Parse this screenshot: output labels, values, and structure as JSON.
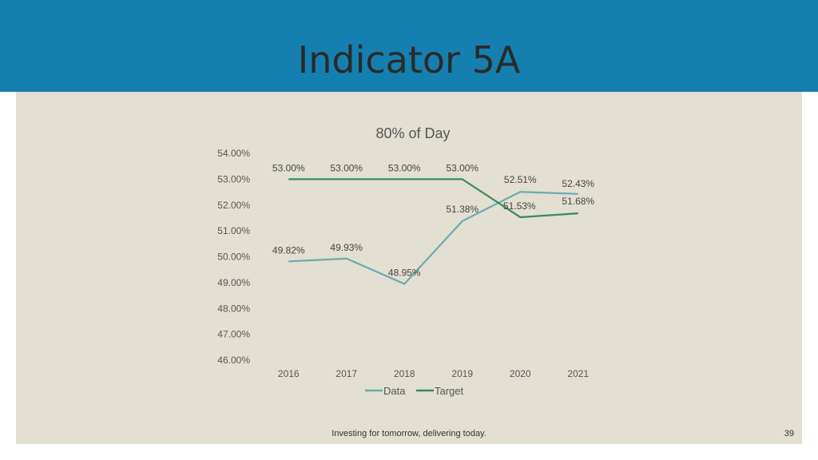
{
  "slide": {
    "title": "Indicator 5A",
    "footer": "Investing for tomorrow, delivering today.",
    "page_number": "39"
  },
  "colors": {
    "header": "#1580b0",
    "content_bg": "#e3dfd2",
    "data_series": "#6aaab0",
    "target_series": "#3a8a5a"
  },
  "chart_data": {
    "type": "line",
    "title": "80% of Day",
    "x": [
      "2016",
      "2017",
      "2018",
      "2019",
      "2020",
      "2021"
    ],
    "ylim": [
      46,
      54
    ],
    "yticks": [
      "46.00%",
      "47.00%",
      "48.00%",
      "49.00%",
      "50.00%",
      "51.00%",
      "52.00%",
      "53.00%",
      "54.00%"
    ],
    "grid": false,
    "legend": "bottom",
    "series": [
      {
        "name": "Data",
        "color": "#6aaab0",
        "values": [
          49.82,
          49.93,
          48.95,
          51.38,
          52.51,
          52.43
        ],
        "labels": [
          "49.82%",
          "49.93%",
          "48.95%",
          "51.38%",
          "52.51%",
          "52.43%"
        ]
      },
      {
        "name": "Target",
        "color": "#3a8a5a",
        "values": [
          53.0,
          53.0,
          53.0,
          53.0,
          51.53,
          51.68
        ],
        "labels": [
          "53.00%",
          "53.00%",
          "53.00%",
          "53.00%",
          "51.53%",
          "51.68%"
        ]
      }
    ]
  }
}
